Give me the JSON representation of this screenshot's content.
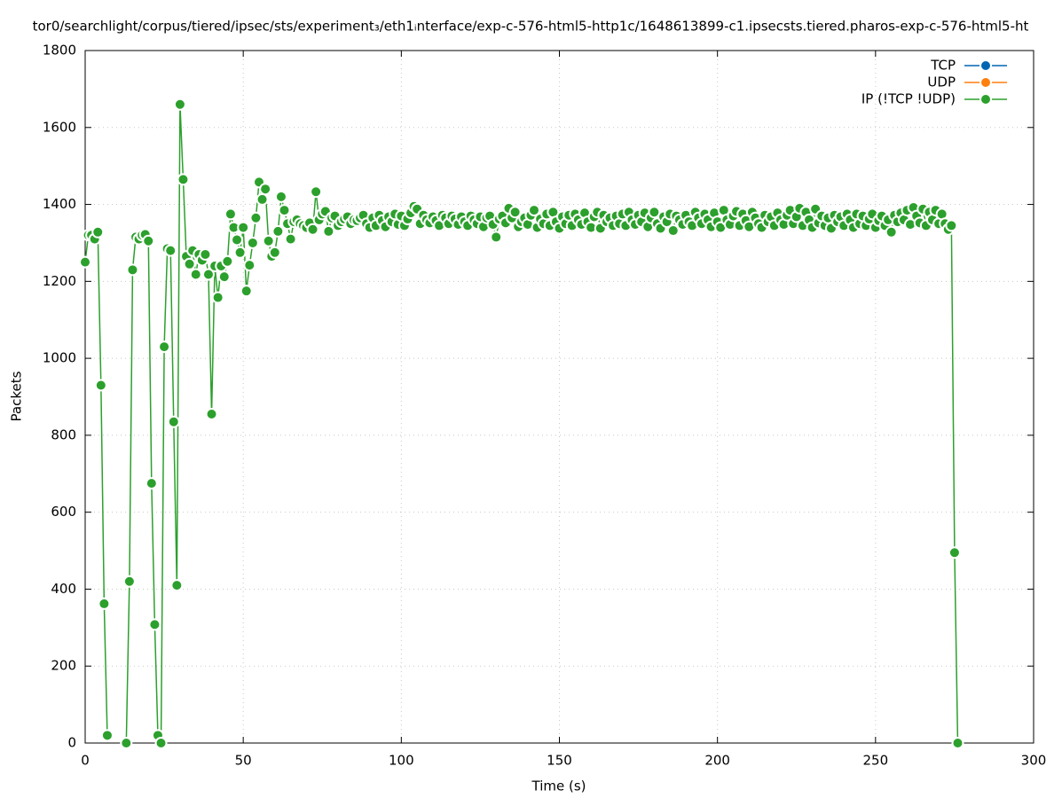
{
  "chart_data": {
    "type": "line",
    "title": "tor0/searchlight/corpus/tiered/ipsec/sts/experiment₃/eth1ᵢnterface/exp-c-576-html5-http1c/1648613899-c1.ipsecsts.tiered.pharos-exp-c-576-html5-ht",
    "x_label": "Time (s)",
    "y_label": "Packets",
    "xlim": [
      0,
      300
    ],
    "xticks": [
      0,
      50,
      100,
      150,
      200,
      250,
      300
    ],
    "ylim": [
      0,
      1800
    ],
    "yticks": [
      0,
      200,
      400,
      600,
      800,
      1000,
      1200,
      1400,
      1600,
      1800
    ],
    "grid": true,
    "legend": "top-right",
    "x": [
      0,
      1,
      2,
      3,
      4,
      5,
      6,
      7,
      8,
      9,
      10,
      11,
      12,
      13,
      14,
      15,
      16,
      17,
      18,
      19,
      20,
      21,
      22,
      23,
      24,
      25,
      26,
      27,
      28,
      29,
      30,
      31,
      32,
      33,
      34,
      35,
      36,
      37,
      38,
      39,
      40,
      41,
      42,
      43,
      44,
      45,
      46,
      47,
      48,
      49,
      50,
      51,
      52,
      53,
      54,
      55,
      56,
      57,
      58,
      59,
      60,
      61,
      62,
      63,
      64,
      65,
      66,
      67,
      68,
      69,
      70,
      71,
      72,
      73,
      74,
      75,
      76,
      77,
      78,
      79,
      80,
      81,
      82,
      83,
      84,
      85,
      86,
      87,
      88,
      89,
      90,
      91,
      92,
      93,
      94,
      95,
      96,
      97,
      98,
      99,
      100,
      101,
      102,
      103,
      104,
      105,
      106,
      107,
      108,
      109,
      110,
      111,
      112,
      113,
      114,
      115,
      116,
      117,
      118,
      119,
      120,
      121,
      122,
      123,
      124,
      125,
      126,
      127,
      128,
      129,
      130,
      131,
      132,
      133,
      134,
      135,
      136,
      137,
      138,
      139,
      140,
      141,
      142,
      143,
      144,
      145,
      146,
      147,
      148,
      149,
      150,
      151,
      152,
      153,
      154,
      155,
      156,
      157,
      158,
      159,
      160,
      161,
      162,
      163,
      164,
      165,
      166,
      167,
      168,
      169,
      170,
      171,
      172,
      173,
      174,
      175,
      176,
      177,
      178,
      179,
      180,
      181,
      182,
      183,
      184,
      185,
      186,
      187,
      188,
      189,
      190,
      191,
      192,
      193,
      194,
      195,
      196,
      197,
      198,
      199,
      200,
      201,
      202,
      203,
      204,
      205,
      206,
      207,
      208,
      209,
      210,
      211,
      212,
      213,
      214,
      215,
      216,
      217,
      218,
      219,
      220,
      221,
      222,
      223,
      224,
      225,
      226,
      227,
      228,
      229,
      230,
      231,
      232,
      233,
      234,
      235,
      236,
      237,
      238,
      239,
      240,
      241,
      242,
      243,
      244,
      245,
      246,
      247,
      248,
      249,
      250,
      251,
      252,
      253,
      254,
      255,
      256,
      257,
      258,
      259,
      260,
      261,
      262,
      263,
      264,
      265,
      266,
      267,
      268,
      269,
      270,
      271,
      272,
      273,
      274,
      275,
      276
    ],
    "series": [
      {
        "name": "TCP",
        "color": "#0066b3",
        "values": [
          null,
          null,
          null,
          null,
          null,
          null,
          null,
          null,
          null,
          null,
          null,
          null,
          null,
          null,
          null,
          null,
          null,
          null,
          null,
          null,
          null,
          null,
          null,
          null,
          null,
          null,
          null,
          null,
          null,
          null,
          null,
          null,
          null,
          null,
          null,
          null,
          null,
          null,
          null,
          null,
          null,
          null,
          null,
          null,
          null,
          null,
          null,
          null,
          null,
          null,
          null,
          null,
          null,
          null,
          null,
          null,
          null,
          null,
          null,
          null,
          null,
          null,
          null,
          null,
          null,
          null,
          null,
          null,
          null,
          null,
          null,
          null,
          null,
          null,
          null,
          null,
          null,
          null,
          null,
          null,
          null,
          null,
          null,
          null,
          null,
          null,
          null,
          null,
          null,
          null,
          null,
          null,
          null,
          null,
          null,
          null,
          null,
          null,
          null,
          null,
          null,
          null,
          null,
          null,
          null,
          null,
          null,
          null,
          null,
          null,
          null,
          null,
          null,
          null,
          null,
          null,
          null,
          null,
          null,
          null,
          null,
          null,
          null,
          null,
          null,
          null,
          null,
          null,
          null,
          null,
          null,
          null,
          null,
          null,
          null,
          null,
          null,
          null,
          null,
          null,
          null,
          null,
          null,
          null,
          null,
          null,
          null,
          null,
          null,
          null,
          null,
          null,
          null,
          null,
          null,
          null,
          null,
          null,
          null,
          null,
          null,
          null,
          null,
          null,
          null,
          null,
          null,
          null,
          null,
          null,
          null,
          null,
          null,
          null,
          null,
          null,
          null,
          null,
          null,
          null,
          null,
          null,
          null,
          null,
          null,
          null,
          null,
          null,
          null,
          null,
          null,
          null,
          null,
          null,
          null,
          null,
          null,
          null,
          null,
          null,
          null,
          null,
          null,
          null,
          null,
          null,
          null,
          null,
          null,
          null,
          null,
          null,
          null,
          null,
          null,
          null,
          null,
          null,
          null,
          null,
          null,
          null,
          null,
          null,
          null,
          null,
          null,
          null,
          null,
          null,
          null,
          null,
          null,
          null,
          null,
          null,
          null,
          null,
          null,
          null,
          null,
          null,
          null,
          null,
          null,
          null,
          null,
          null,
          null,
          null,
          null,
          null,
          null,
          null,
          null,
          null,
          null,
          null,
          null,
          null,
          null,
          null,
          null,
          null,
          null,
          null,
          null,
          null,
          null,
          null,
          null,
          null,
          null,
          null,
          null,
          null,
          null
        ]
      },
      {
        "name": "UDP",
        "color": "#ff7f0e",
        "values": [
          null,
          null,
          null,
          null,
          null,
          null,
          null,
          null,
          null,
          null,
          null,
          null,
          null,
          null,
          null,
          null,
          null,
          null,
          null,
          null,
          null,
          null,
          null,
          null,
          null,
          null,
          null,
          null,
          null,
          null,
          null,
          null,
          null,
          null,
          null,
          null,
          null,
          null,
          null,
          null,
          null,
          null,
          null,
          null,
          null,
          null,
          null,
          null,
          null,
          null,
          null,
          null,
          null,
          null,
          null,
          null,
          null,
          null,
          null,
          null,
          null,
          null,
          null,
          null,
          null,
          null,
          null,
          null,
          null,
          null,
          null,
          null,
          null,
          null,
          null,
          null,
          null,
          null,
          null,
          null,
          null,
          null,
          null,
          null,
          null,
          null,
          null,
          null,
          null,
          null,
          null,
          null,
          null,
          null,
          null,
          null,
          null,
          null,
          null,
          null,
          null,
          null,
          null,
          null,
          null,
          null,
          null,
          null,
          null,
          null,
          null,
          null,
          null,
          null,
          null,
          null,
          null,
          null,
          null,
          null,
          null,
          null,
          null,
          null,
          null,
          null,
          null,
          null,
          null,
          null,
          null,
          null,
          null,
          null,
          null,
          null,
          null,
          null,
          null,
          null,
          null,
          null,
          null,
          null,
          null,
          null,
          null,
          null,
          null,
          null,
          null,
          null,
          null,
          null,
          null,
          null,
          null,
          null,
          null,
          null,
          null,
          null,
          null,
          null,
          null,
          null,
          null,
          null,
          null,
          null,
          null,
          null,
          null,
          null,
          null,
          null,
          null,
          null,
          null,
          null,
          null,
          null,
          null,
          null,
          null,
          null,
          null,
          null,
          null,
          null,
          null,
          null,
          null,
          null,
          null,
          null,
          null,
          null,
          null,
          null,
          null,
          null,
          null,
          null,
          null,
          null,
          null,
          null,
          null,
          null,
          null,
          null,
          null,
          null,
          null,
          null,
          null,
          null,
          null,
          null,
          null,
          null,
          null,
          null,
          null,
          null,
          null,
          null,
          null,
          null,
          null,
          null,
          null,
          null,
          null,
          null,
          null,
          null,
          null,
          null,
          null,
          null,
          null,
          null,
          null,
          null,
          null,
          null,
          null,
          null,
          null,
          null,
          null,
          null,
          null,
          null,
          null,
          null,
          null,
          null,
          null,
          null,
          null,
          null,
          null,
          null,
          null,
          null,
          null,
          null,
          null,
          null,
          null,
          null,
          null,
          null,
          null
        ]
      },
      {
        "name": "IP (!TCP  !UDP)",
        "color": "#2ca02c",
        "values": [
          1250,
          1320,
          1320,
          1310,
          1328,
          930,
          362,
          20,
          null,
          null,
          null,
          null,
          null,
          0,
          420,
          1230,
          1315,
          1310,
          1320,
          1322,
          1305,
          675,
          308,
          20,
          0,
          1030,
          1285,
          1280,
          835,
          410,
          1660,
          1465,
          1265,
          1245,
          1280,
          1218,
          1270,
          1255,
          1270,
          1218,
          855,
          1240,
          1158,
          1240,
          1212,
          1252,
          1375,
          1340,
          1308,
          1275,
          1340,
          1175,
          1242,
          1300,
          1365,
          1458,
          1413,
          1440,
          1305,
          1265,
          1275,
          1330,
          1420,
          1385,
          1350,
          1310,
          1355,
          1360,
          1350,
          1345,
          1340,
          1352,
          1335,
          1433,
          1360,
          1375,
          1382,
          1330,
          1365,
          1370,
          1345,
          1355,
          1362,
          1368,
          1350,
          1360,
          1358,
          1365,
          1372,
          1350,
          1340,
          1365,
          1345,
          1372,
          1358,
          1342,
          1368,
          1355,
          1375,
          1348,
          1370,
          1345,
          1362,
          1378,
          1395,
          1388,
          1350,
          1372,
          1360,
          1352,
          1368,
          1358,
          1345,
          1372,
          1365,
          1350,
          1370,
          1362,
          1348,
          1368,
          1355,
          1345,
          1370,
          1360,
          1350,
          1368,
          1342,
          1365,
          1370,
          1348,
          1315,
          1362,
          1370,
          1352,
          1390,
          1365,
          1380,
          1342,
          1355,
          1365,
          1348,
          1372,
          1385,
          1340,
          1362,
          1350,
          1375,
          1345,
          1380,
          1355,
          1338,
          1368,
          1350,
          1372,
          1345,
          1375,
          1360,
          1348,
          1378,
          1355,
          1340,
          1368,
          1380,
          1338,
          1372,
          1355,
          1365,
          1345,
          1370,
          1350,
          1375,
          1345,
          1380,
          1360,
          1348,
          1372,
          1355,
          1378,
          1342,
          1365,
          1380,
          1350,
          1338,
          1368,
          1355,
          1375,
          1332,
          1370,
          1360,
          1348,
          1372,
          1355,
          1345,
          1380,
          1365,
          1350,
          1375,
          1360,
          1342,
          1378,
          1355,
          1340,
          1385,
          1360,
          1348,
          1370,
          1382,
          1345,
          1375,
          1358,
          1342,
          1380,
          1365,
          1350,
          1340,
          1372,
          1355,
          1368,
          1345,
          1378,
          1360,
          1348,
          1372,
          1385,
          1350,
          1368,
          1390,
          1345,
          1380,
          1360,
          1340,
          1388,
          1352,
          1370,
          1345,
          1365,
          1338,
          1372,
          1355,
          1368,
          1345,
          1375,
          1360,
          1340,
          1375,
          1350,
          1370,
          1345,
          1362,
          1375,
          1340,
          1358,
          1370,
          1345,
          1360,
          1328,
          1372,
          1355,
          1378,
          1360,
          1385,
          1348,
          1392,
          1370,
          1352,
          1388,
          1345,
          1380,
          1360,
          1385,
          1350,
          1375,
          1350,
          1335,
          1345,
          495,
          0
        ]
      }
    ]
  }
}
